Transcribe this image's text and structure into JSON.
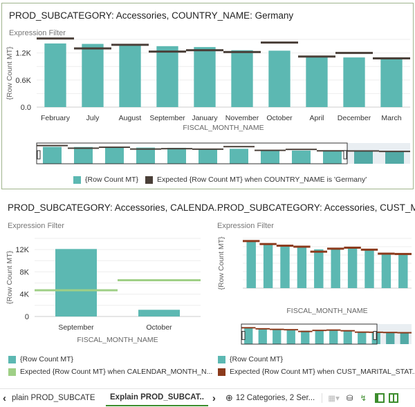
{
  "colors": {
    "bar": "#5cb8b2",
    "expected_top": "#4a3f38",
    "expected_left": "#9fcf86",
    "expected_right": "#8b3a1c",
    "panel_border": "#9fb48c",
    "accent": "#3c8c2c"
  },
  "charts": [
    {
      "title": "PROD_SUBCATEGORY: Accessories, COUNTRY_NAME: Germany",
      "subtitle": "Expression Filter"
    },
    {
      "title": "PROD_SUBCATEGORY: Accessories, CALENDA...",
      "subtitle": "Expression Filter"
    },
    {
      "title": "PROD_SUBCATEGORY: Accessories, CUST_M...",
      "subtitle": "Expression Filter"
    }
  ],
  "chart_data": [
    {
      "type": "bar",
      "xlabel": "FISCAL_MONTH_NAME",
      "ylabel": "{Row Count MT}",
      "ylim": [
        0,
        1500
      ],
      "ticks": [
        "0.0",
        "0.6K",
        "1.2K"
      ],
      "tick_values": [
        0,
        600,
        1200
      ],
      "grid": true,
      "categories": [
        "February",
        "July",
        "August",
        "September",
        "January",
        "November",
        "October",
        "April",
        "December",
        "March"
      ],
      "series": [
        {
          "name": "{Row Count MT}",
          "type": "bar",
          "values": [
            1410,
            1400,
            1370,
            1350,
            1330,
            1260,
            1250,
            1120,
            1100,
            1070
          ]
        },
        {
          "name": "Expected {Row Count MT} when COUNTRY_NAME is 'Germany'",
          "type": "marker",
          "values": [
            1520,
            1300,
            1380,
            1230,
            1260,
            1220,
            1430,
            1120,
            1200,
            1080
          ]
        }
      ],
      "overview_hidden_values": {
        "bar": [
          1050,
          1040
        ],
        "marker": [
          1070,
          1030
        ]
      },
      "legend": "bottom"
    },
    {
      "type": "bar",
      "xlabel": "FISCAL_MONTH_NAME",
      "ylabel": "{Row Count MT}",
      "ylim": [
        0,
        14000
      ],
      "ticks": [
        "0",
        "4K",
        "8K",
        "12K"
      ],
      "tick_values": [
        0,
        4000,
        8000,
        12000
      ],
      "grid": true,
      "categories": [
        "September",
        "October"
      ],
      "series": [
        {
          "name": "{Row Count MT}",
          "type": "bar",
          "values": [
            12100,
            1200
          ]
        },
        {
          "name": "Expected {Row Count MT} when CALENDAR_MONTH_N...",
          "type": "marker",
          "values": [
            4700,
            6500
          ]
        }
      ],
      "legend": "bottom"
    },
    {
      "type": "bar",
      "xlabel": "FISCAL_MONTH_NAME",
      "ylabel": "{Row Count MT}",
      "ylim": [
        0,
        1500
      ],
      "grid": true,
      "series": [
        {
          "name": "{Row Count MT}",
          "type": "bar",
          "values": [
            1410,
            1320,
            1280,
            1240,
            1170,
            1190,
            1210,
            1150,
            1030,
            1010
          ]
        },
        {
          "name": "Expected {Row Count MT} when CUST_MARITAL_STAT...",
          "type": "marker",
          "values": [
            1420,
            1330,
            1280,
            1250,
            1100,
            1190,
            1220,
            1160,
            1040,
            1030
          ]
        }
      ],
      "overview_hidden_values": {
        "bar": [
          1000,
          980
        ],
        "marker": [
          1010,
          990
        ]
      },
      "legend": "bottom"
    }
  ],
  "bottombar": {
    "prev_tab": "plain PROD_SUBCATE...",
    "active_tab": "Explain PROD_SUBCAT..",
    "info": "12 Categories, 2 Ser..."
  }
}
